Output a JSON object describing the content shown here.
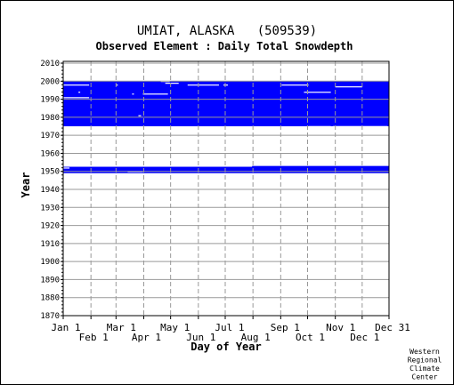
{
  "chart_data": {
    "type": "heatmap",
    "title": "UMIAT, ALASKA   (509539)",
    "subtitle": "Observed Element : Daily Total Snowdepth",
    "xlabel": "Day of Year",
    "ylabel": "Year",
    "x_ticks_row1": [
      "Jan 1",
      "Mar 1",
      "May 1",
      "Jul 1",
      "Sep 1",
      "Nov 1",
      "Dec 31"
    ],
    "x_ticks_row2": [
      "Feb 1",
      "Apr 1",
      "Jun 1",
      "Aug 1",
      "Oct 1",
      "Dec 1"
    ],
    "y_ticks": [
      "2010",
      "2000",
      "1990",
      "1980",
      "1970",
      "1960",
      "1950",
      "1940",
      "1930",
      "1920",
      "1910",
      "1900",
      "1890",
      "1880",
      "1870"
    ],
    "ylim": [
      1870,
      2011
    ],
    "xlim_day_of_year": [
      1,
      365
    ],
    "data_color": "#0000ff",
    "description": "Blue marks days with snow depth observations present",
    "coverage_blocks": [
      {
        "years": [
          1975,
          2000
        ],
        "days": [
          1,
          365
        ]
      },
      {
        "years": [
          1949,
          1953
        ],
        "days": [
          1,
          365
        ]
      }
    ],
    "gaps": [
      {
        "year": 1998,
        "days": [
          1,
          30
        ]
      },
      {
        "year": 1991,
        "days": [
          1,
          30
        ]
      },
      {
        "year": 1994,
        "days": [
          18,
          20
        ]
      },
      {
        "year": 1998,
        "days": [
          60,
          62
        ]
      },
      {
        "year": 1993,
        "days": [
          78,
          80
        ]
      },
      {
        "year": 1993,
        "days": [
          90,
          118
        ]
      },
      {
        "year": 2000,
        "days": [
          110,
          120
        ]
      },
      {
        "year": 1999,
        "days": [
          115,
          130
        ]
      },
      {
        "year": 1998,
        "days": [
          140,
          175
        ]
      },
      {
        "year": 1998,
        "days": [
          180,
          185
        ]
      },
      {
        "year": 1981,
        "days": [
          85,
          88
        ]
      },
      {
        "year": 1998,
        "days": [
          245,
          275
        ]
      },
      {
        "year": 1994,
        "days": [
          270,
          300
        ]
      },
      {
        "year": 1997,
        "days": [
          305,
          335
        ]
      },
      {
        "year": 1975,
        "days": [
          275,
          300
        ]
      },
      {
        "year": 1975,
        "days": [
          302,
          363
        ]
      },
      {
        "year": 1953,
        "days": [
          1,
          180
        ]
      },
      {
        "year": 1952,
        "days": [
          1,
          8
        ]
      },
      {
        "year": 1950,
        "days": [
          73,
          90
        ]
      },
      {
        "year": 1953,
        "days": [
          180,
          212
        ]
      },
      {
        "year": 1954,
        "days": [
          180,
          212
        ]
      },
      {
        "year": 1948,
        "days": [
          245,
          365
        ]
      }
    ],
    "grid": true,
    "credit": [
      "Western",
      "Regional",
      "Climate",
      "Center"
    ]
  }
}
